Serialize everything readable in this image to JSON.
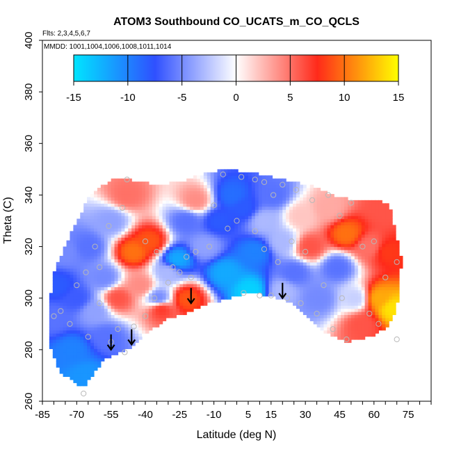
{
  "chart_data": {
    "type": "heatmap",
    "title": "ATOM3 Southbound CO_UCATS_m_CO_QCLS",
    "flights_note": "Flts: 2,3,4,5,6,7",
    "mmdd_note": "MMDD: 1001,1004,1006,1008,1011,1014",
    "xlabel": "Latitude (deg N)",
    "ylabel": "Theta (C)",
    "xlim": [
      -85,
      85
    ],
    "ylim": [
      260,
      400
    ],
    "x_tick_labels": [
      "-85",
      "-70",
      "-55",
      "-40",
      "-25",
      "-10",
      "5",
      "15",
      "30",
      "45",
      "60",
      "75"
    ],
    "x_tick_values": [
      -85,
      -70,
      -55,
      -40,
      -25,
      -10,
      5,
      15,
      30,
      45,
      60,
      75
    ],
    "x_minor_step": 5,
    "y_tick_labels": [
      "260",
      "280",
      "300",
      "320",
      "340",
      "360",
      "380",
      "400"
    ],
    "y_tick_values": [
      260,
      280,
      300,
      320,
      340,
      360,
      380,
      400
    ],
    "colorbar": {
      "range": [
        -15,
        15
      ],
      "tick_labels": [
        "-15",
        "-10",
        "-5",
        "0",
        "5",
        "10",
        "15"
      ],
      "tick_values": [
        -15,
        -10,
        -5,
        0,
        5,
        10,
        15
      ],
      "colors": [
        "#00e5ff",
        "#2f50ff",
        "#ffffff",
        "#ff2a1a",
        "#ffff00"
      ]
    },
    "tropopause_arrows_lat": [
      -55,
      -46,
      -20,
      20
    ],
    "tropopause_arrows_theta": [
      280,
      282,
      298,
      300
    ],
    "region_outline": [
      [
        -81,
        308
      ],
      [
        -76,
        318
      ],
      [
        -70,
        330
      ],
      [
        -64,
        340
      ],
      [
        -55,
        346
      ],
      [
        -47,
        346
      ],
      [
        -35,
        344
      ],
      [
        -25,
        345
      ],
      [
        -15,
        348
      ],
      [
        -5,
        350
      ],
      [
        5,
        349
      ],
      [
        15,
        347
      ],
      [
        25,
        345
      ],
      [
        35,
        343
      ],
      [
        45,
        339
      ],
      [
        53,
        338
      ],
      [
        63,
        338
      ],
      [
        67,
        336
      ],
      [
        72,
        315
      ],
      [
        71,
        300
      ],
      [
        68,
        292
      ],
      [
        65,
        288
      ],
      [
        58,
        285
      ],
      [
        48,
        283
      ],
      [
        40,
        286
      ],
      [
        33,
        291
      ],
      [
        25,
        298
      ],
      [
        15,
        301
      ],
      [
        5,
        302
      ],
      [
        -3,
        300
      ],
      [
        -12,
        298
      ],
      [
        -20,
        295
      ],
      [
        -30,
        292
      ],
      [
        -40,
        286
      ],
      [
        -48,
        280
      ],
      [
        -53,
        278
      ],
      [
        -58,
        276
      ],
      [
        -63,
        270
      ],
      [
        -67,
        265
      ],
      [
        -72,
        268
      ],
      [
        -78,
        272
      ],
      [
        -82,
        283
      ]
    ],
    "field_nodes": [
      [
        -78,
        305,
        -8
      ],
      [
        -70,
        300,
        -7
      ],
      [
        -62,
        295,
        -4
      ],
      [
        -72,
        280,
        -10
      ],
      [
        -66,
        270,
        -11
      ],
      [
        -57,
        285,
        -6
      ],
      [
        -52,
        300,
        6
      ],
      [
        -58,
        308,
        -5
      ],
      [
        -65,
        320,
        -6
      ],
      [
        -55,
        330,
        -4
      ],
      [
        -48,
        340,
        5
      ],
      [
        -45,
        318,
        10
      ],
      [
        -38,
        322,
        9
      ],
      [
        -42,
        305,
        4
      ],
      [
        -34,
        300,
        -5
      ],
      [
        -30,
        310,
        -3
      ],
      [
        -26,
        315,
        -12
      ],
      [
        -22,
        330,
        -6
      ],
      [
        -18,
        338,
        4
      ],
      [
        -14,
        320,
        -4
      ],
      [
        -8,
        330,
        -8
      ],
      [
        -5,
        310,
        -12
      ],
      [
        -2,
        340,
        -9
      ],
      [
        3,
        335,
        -8
      ],
      [
        8,
        318,
        -10
      ],
      [
        12,
        330,
        -3
      ],
      [
        16,
        340,
        -6
      ],
      [
        20,
        322,
        -3
      ],
      [
        25,
        310,
        -6
      ],
      [
        28,
        332,
        2
      ],
      [
        32,
        320,
        6
      ],
      [
        36,
        300,
        -5
      ],
      [
        40,
        335,
        3
      ],
      [
        44,
        312,
        -6
      ],
      [
        48,
        325,
        10
      ],
      [
        52,
        300,
        -2
      ],
      [
        55,
        290,
        6
      ],
      [
        58,
        320,
        5
      ],
      [
        62,
        300,
        12
      ],
      [
        66,
        318,
        8
      ],
      [
        68,
        296,
        14
      ],
      [
        64,
        335,
        6
      ],
      [
        -33,
        296,
        7
      ],
      [
        -22,
        300,
        9
      ],
      [
        6,
        303,
        -14
      ],
      [
        20,
        303,
        -3
      ],
      [
        -80,
        292,
        -6
      ],
      [
        -75,
        318,
        -5
      ]
    ],
    "sample_points": [
      [
        -67,
        263
      ],
      [
        -65,
        285
      ],
      [
        -73,
        290
      ],
      [
        -77,
        295
      ],
      [
        -80,
        293
      ],
      [
        -70,
        305
      ],
      [
        -66,
        310
      ],
      [
        -60,
        298
      ],
      [
        -55,
        283
      ],
      [
        -52,
        288
      ],
      [
        -49,
        279
      ],
      [
        -45,
        289
      ],
      [
        -40,
        293
      ],
      [
        -36,
        300
      ],
      [
        -30,
        306
      ],
      [
        -28,
        312
      ],
      [
        -22,
        316
      ],
      [
        -18,
        318
      ],
      [
        -12,
        320
      ],
      [
        -60,
        312
      ],
      [
        -62,
        320
      ],
      [
        -56,
        328
      ],
      [
        -50,
        335
      ],
      [
        -48,
        346
      ],
      [
        -40,
        322
      ],
      [
        -35,
        318
      ],
      [
        -25,
        310
      ],
      [
        -20,
        308
      ],
      [
        -10,
        336
      ],
      [
        -6,
        348
      ],
      [
        2,
        347
      ],
      [
        8,
        346
      ],
      [
        12,
        345
      ],
      [
        16,
        340
      ],
      [
        20,
        344
      ],
      [
        26,
        342
      ],
      [
        33,
        338
      ],
      [
        40,
        340
      ],
      [
        45,
        332
      ],
      [
        50,
        337
      ],
      [
        55,
        320
      ],
      [
        60,
        322
      ],
      [
        65,
        308
      ],
      [
        70,
        314
      ],
      [
        70,
        284
      ],
      [
        62,
        290
      ],
      [
        58,
        294
      ],
      [
        48,
        284
      ],
      [
        42,
        288
      ],
      [
        35,
        294
      ],
      [
        28,
        298
      ],
      [
        22,
        300
      ],
      [
        15,
        301
      ],
      [
        10,
        301
      ],
      [
        3,
        302
      ],
      [
        -4,
        327
      ],
      [
        0,
        330
      ],
      [
        8,
        326
      ],
      [
        12,
        319
      ],
      [
        18,
        314
      ],
      [
        24,
        322
      ],
      [
        30,
        318
      ],
      [
        38,
        305
      ],
      [
        46,
        300
      ]
    ]
  }
}
